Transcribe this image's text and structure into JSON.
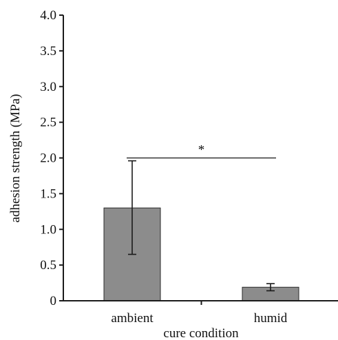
{
  "chart_data": {
    "type": "bar",
    "title": "",
    "xlabel": "cure condition",
    "ylabel": "adhesion strength (MPa)",
    "categories": [
      "ambient",
      "humid"
    ],
    "values": [
      1.3,
      0.19
    ],
    "error_low": [
      0.65,
      0.14
    ],
    "error_high": [
      1.96,
      0.24
    ],
    "ylim": [
      0,
      4.0
    ],
    "yticks": [
      "0",
      "0.5",
      "1.0",
      "1.5",
      "2.0",
      "2.5",
      "3.0",
      "3.5",
      "4.0"
    ],
    "significance": {
      "marker": "*",
      "level": 2.0,
      "between": [
        "ambient",
        "humid"
      ]
    },
    "bar_color": "#8c8c8c",
    "grid": false,
    "legend": "none"
  }
}
